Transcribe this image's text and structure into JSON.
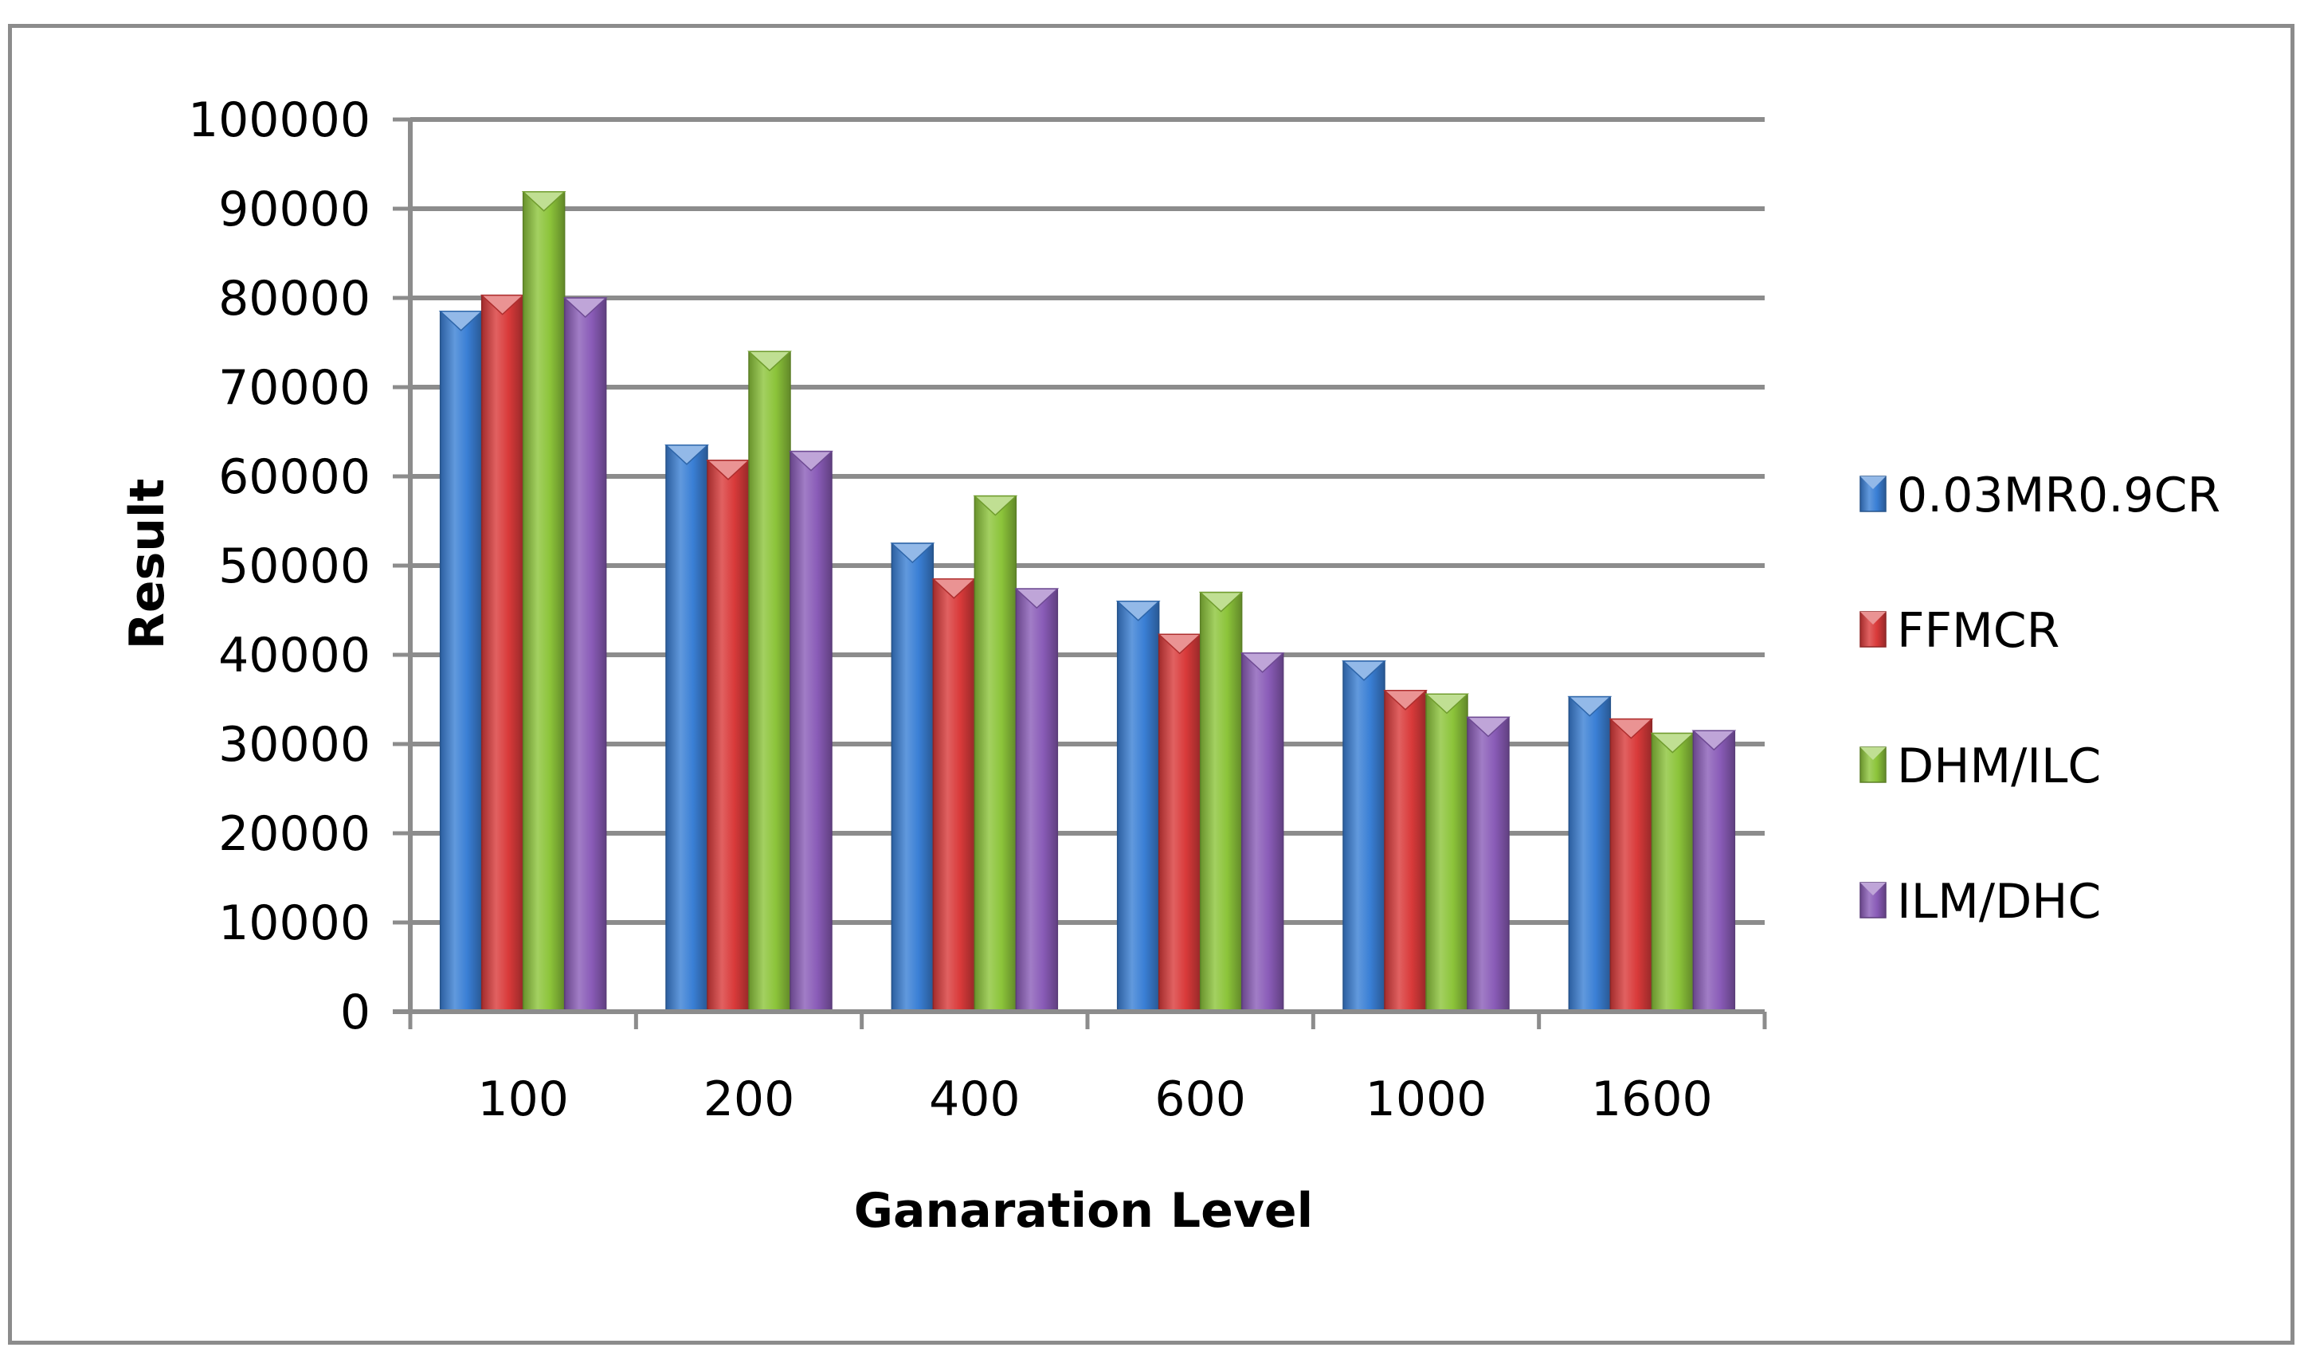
{
  "chart_data": {
    "type": "bar",
    "title": "",
    "xlabel": "Ganaration Level",
    "ylabel": "Result",
    "categories": [
      "100",
      "200",
      "400",
      "600",
      "1000",
      "1600"
    ],
    "series": [
      {
        "name": "0.03MR0.9CR",
        "color": "#3a7fd5",
        "values": [
          78500,
          63500,
          52500,
          46000,
          39300,
          35300
        ]
      },
      {
        "name": "FFMCR",
        "color": "#d93a3a",
        "values": [
          80300,
          61800,
          48500,
          42300,
          36000,
          32800
        ]
      },
      {
        "name": "DHM/ILC",
        "color": "#8cc43a",
        "values": [
          91900,
          74000,
          57800,
          47000,
          35600,
          31200
        ]
      },
      {
        "name": "ILM/DHC",
        "color": "#8a5cb8",
        "values": [
          80000,
          62800,
          47400,
          40200,
          33000,
          31500
        ]
      }
    ],
    "ylim": [
      0,
      100000
    ],
    "yticks": [
      0,
      10000,
      20000,
      30000,
      40000,
      50000,
      60000,
      70000,
      80000,
      90000,
      100000
    ],
    "grid": true,
    "legend_position": "right"
  }
}
